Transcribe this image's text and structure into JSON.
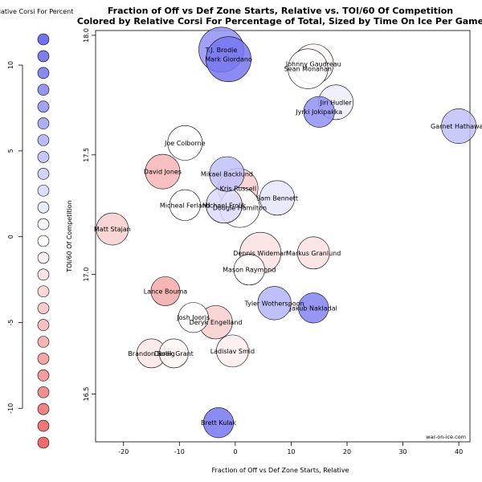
{
  "chart_data": {
    "type": "scatter",
    "title": "Fraction of Off vs Def Zone Starts, Relative vs. TOI/60 Of Competition",
    "subtitle": "Colored by Relative Corsi For Percentage of Total, Sized by Time On Ice Per Game",
    "xlabel": "Fraction of Off vs Def Zone Starts, Relative",
    "ylabel": "TOI/60 Of Competition",
    "xlim": [
      -25,
      42
    ],
    "ylim": [
      16.3,
      18.02
    ],
    "x_ticks": [
      "-20",
      "-10",
      "0",
      "10",
      "20",
      "30",
      "40"
    ],
    "y_ticks": [
      "16.5",
      "17.0",
      "17.5",
      "18.0"
    ],
    "grid": false,
    "credit": "war-on-ice.com",
    "legend": {
      "title": "Relative Corsi For Percent",
      "placement": "left",
      "ticks": [
        "10",
        "5",
        "0",
        "-5",
        "-10"
      ],
      "range": [
        11.5,
        -12
      ]
    },
    "color_scale": {
      "high": "#6b6bf0",
      "mid": "#ffffff",
      "low": "#ee6b6b"
    },
    "points": [
      {
        "name": "T.J. Brodie",
        "x": -2.5,
        "y": 17.94,
        "color": 9,
        "size": 1.0
      },
      {
        "name": "Mark Giordano",
        "x": -1.2,
        "y": 17.9,
        "color": 11,
        "size": 1.0
      },
      {
        "name": "Johnny Gaudreau",
        "x": 14,
        "y": 17.88,
        "color": -0.5,
        "size": 0.8
      },
      {
        "name": "Sean Monahan",
        "x": 13,
        "y": 17.86,
        "color": 0,
        "size": 0.8
      },
      {
        "name": "Jiri Hudler",
        "x": 18,
        "y": 17.72,
        "color": 1.5,
        "size": 0.6
      },
      {
        "name": "Jyrki Jokipakka",
        "x": 15,
        "y": 17.68,
        "color": 9,
        "size": 0.45
      },
      {
        "name": "Garnet Hathaway",
        "x": 40,
        "y": 17.62,
        "color": 5,
        "size": 0.6
      },
      {
        "name": "Joe Colborne",
        "x": -9,
        "y": 17.55,
        "color": 0,
        "size": 0.6
      },
      {
        "name": "David Jones",
        "x": -13,
        "y": 17.43,
        "color": -6,
        "size": 0.6
      },
      {
        "name": "Mikael Backlund",
        "x": -1.5,
        "y": 17.42,
        "color": 5,
        "size": 0.6
      },
      {
        "name": "Kris Russell",
        "x": 0.5,
        "y": 17.36,
        "color": -4,
        "size": 0.8
      },
      {
        "name": "Sam Bennett",
        "x": 7.5,
        "y": 17.32,
        "color": 2,
        "size": 0.6
      },
      {
        "name": "Micheal Ferland",
        "x": -9,
        "y": 17.29,
        "color": 0,
        "size": 0.45
      },
      {
        "name": "Michael Frolik",
        "x": -2,
        "y": 17.29,
        "color": 3,
        "size": 0.65
      },
      {
        "name": "Dougie Hamilton",
        "x": 0.8,
        "y": 17.28,
        "color": 0,
        "size": 0.8
      },
      {
        "name": "Matt Stajan",
        "x": -22,
        "y": 17.19,
        "color": -4,
        "size": 0.5
      },
      {
        "name": "Dennis Wideman",
        "x": 4.5,
        "y": 17.09,
        "color": -2.5,
        "size": 0.85
      },
      {
        "name": "Markus Granlund",
        "x": 14,
        "y": 17.09,
        "color": -2.5,
        "size": 0.5
      },
      {
        "name": "Mason Raymond",
        "x": 2.5,
        "y": 17.02,
        "color": 0,
        "size": 0.45
      },
      {
        "name": "Lance Bouma",
        "x": -12.5,
        "y": 16.93,
        "color": -7,
        "size": 0.38
      },
      {
        "name": "Tyler Wotherspoon",
        "x": 7,
        "y": 16.88,
        "color": 6,
        "size": 0.55
      },
      {
        "name": "Jakub Nakladal",
        "x": 14,
        "y": 16.86,
        "color": 10,
        "size": 0.42
      },
      {
        "name": "Josh Jooris",
        "x": -7.5,
        "y": 16.82,
        "color": 0,
        "size": 0.42
      },
      {
        "name": "Deryk Engelland",
        "x": -3.5,
        "y": 16.8,
        "color": -4,
        "size": 0.55
      },
      {
        "name": "Ladislav Smid",
        "x": -0.5,
        "y": 16.68,
        "color": -1.5,
        "size": 0.5
      },
      {
        "name": "Brandon Bollig",
        "x": -15,
        "y": 16.67,
        "color": -2,
        "size": 0.38
      },
      {
        "name": "Derek Grant",
        "x": -11,
        "y": 16.67,
        "color": -1,
        "size": 0.38
      },
      {
        "name": "Brett Kulak",
        "x": -3,
        "y": 16.38,
        "color": 11,
        "size": 0.42
      }
    ]
  }
}
